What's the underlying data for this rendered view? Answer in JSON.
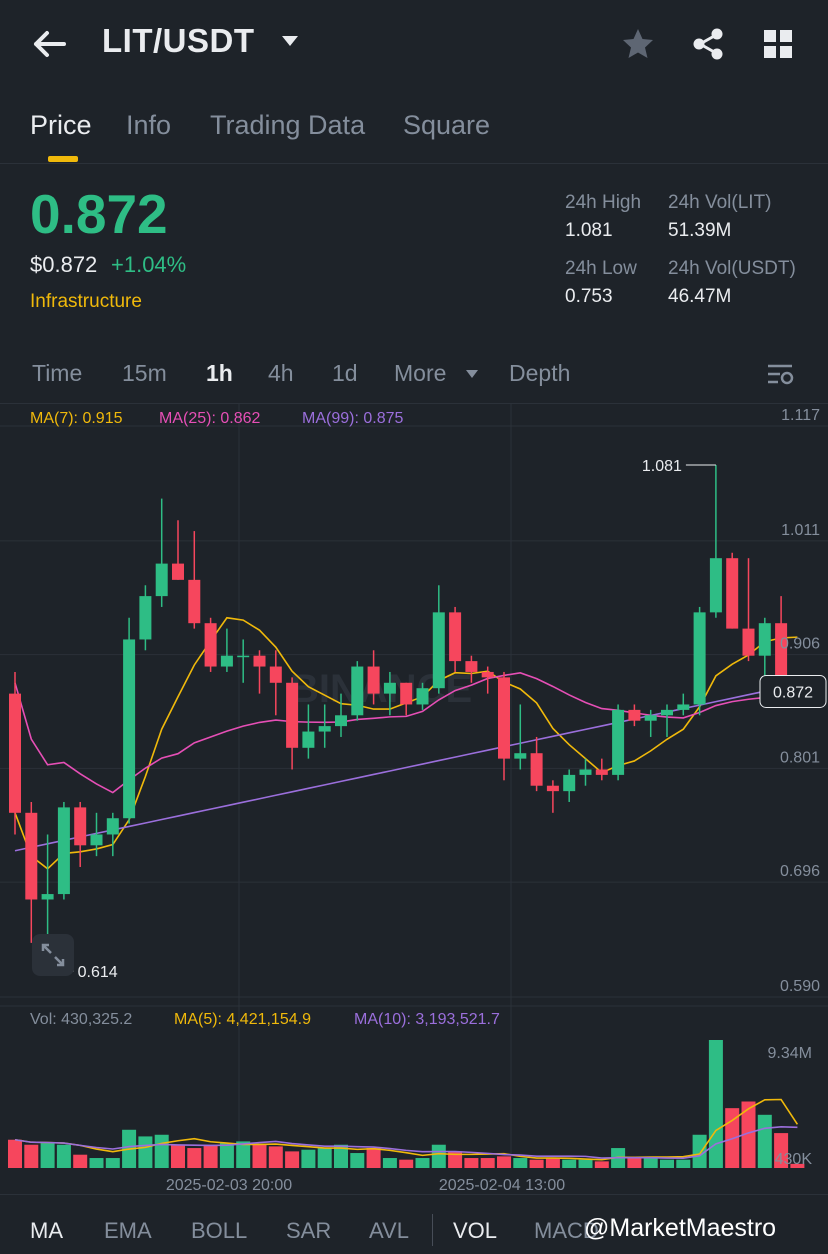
{
  "header": {
    "pair": "LIT/USDT",
    "back_icon": "arrow-left-icon",
    "icons": [
      "star-icon",
      "share-icon",
      "grid-icon"
    ]
  },
  "tabs": [
    {
      "label": "Price",
      "active": true
    },
    {
      "label": "Info",
      "active": false
    },
    {
      "label": "Trading Data",
      "active": false
    },
    {
      "label": "Square",
      "active": false
    }
  ],
  "ticker": {
    "last_price": "0.872",
    "usd_price": "$0.872",
    "change": "+1.04%",
    "category": "Infrastructure",
    "high_label": "24h High",
    "high": "1.081",
    "low_label": "24h Low",
    "low": "0.753",
    "vol_base_label": "24h Vol(LIT)",
    "vol_base": "51.39M",
    "vol_quote_label": "24h Vol(USDT)",
    "vol_quote": "46.47M"
  },
  "intervals": {
    "items": [
      "Time",
      "15m",
      "1h",
      "4h",
      "1d",
      "More",
      "Depth"
    ],
    "active": "1h"
  },
  "chart_legend": {
    "ma7": "MA(7): 0.915",
    "ma25": "MA(25): 0.862",
    "ma99": "MA(99): 0.875",
    "vol": "Vol: 430,325.2",
    "vol_ma5": "MA(5): 4,421,154.9",
    "vol_ma10": "MA(10): 3,193,521.7"
  },
  "chart_data": {
    "type": "candlestick",
    "price_axis_labels": [
      "1.117",
      "1.011",
      "0.906",
      "0.801",
      "0.696",
      "0.590"
    ],
    "price_axis": [
      1.117,
      1.011,
      0.906,
      0.801,
      0.696,
      0.59
    ],
    "volume_axis_labels": [
      "9.34M",
      "430K"
    ],
    "x_labels": [
      "2025-02-03 20:00",
      "2025-02-04 13:00"
    ],
    "current_price_label": "0.872",
    "high_marker": "1.081",
    "low_marker": "0.614",
    "watermark": "BINANCE",
    "colors": {
      "up": "#2ebd85",
      "down": "#f6465d",
      "ma7": "#f0b90b",
      "ma25": "#e64fb6",
      "ma99": "#9b6fdc"
    },
    "candles": [
      {
        "o": 0.87,
        "h": 0.89,
        "l": 0.74,
        "c": 0.76
      },
      {
        "o": 0.76,
        "h": 0.77,
        "l": 0.64,
        "c": 0.68
      },
      {
        "o": 0.68,
        "h": 0.74,
        "l": 0.614,
        "c": 0.685
      },
      {
        "o": 0.685,
        "h": 0.77,
        "l": 0.68,
        "c": 0.765
      },
      {
        "o": 0.765,
        "h": 0.77,
        "l": 0.71,
        "c": 0.73
      },
      {
        "o": 0.73,
        "h": 0.76,
        "l": 0.72,
        "c": 0.74
      },
      {
        "o": 0.74,
        "h": 0.76,
        "l": 0.72,
        "c": 0.755
      },
      {
        "o": 0.755,
        "h": 0.94,
        "l": 0.75,
        "c": 0.92
      },
      {
        "o": 0.92,
        "h": 0.97,
        "l": 0.91,
        "c": 0.96
      },
      {
        "o": 0.96,
        "h": 1.05,
        "l": 0.95,
        "c": 0.99
      },
      {
        "o": 0.99,
        "h": 1.03,
        "l": 0.975,
        "c": 0.975
      },
      {
        "o": 0.975,
        "h": 1.02,
        "l": 0.93,
        "c": 0.935
      },
      {
        "o": 0.935,
        "h": 0.94,
        "l": 0.89,
        "c": 0.895
      },
      {
        "o": 0.895,
        "h": 0.93,
        "l": 0.89,
        "c": 0.905
      },
      {
        "o": 0.905,
        "h": 0.92,
        "l": 0.88,
        "c": 0.905
      },
      {
        "o": 0.905,
        "h": 0.91,
        "l": 0.87,
        "c": 0.895
      },
      {
        "o": 0.895,
        "h": 0.91,
        "l": 0.85,
        "c": 0.88
      },
      {
        "o": 0.88,
        "h": 0.885,
        "l": 0.8,
        "c": 0.82
      },
      {
        "o": 0.82,
        "h": 0.86,
        "l": 0.81,
        "c": 0.835
      },
      {
        "o": 0.835,
        "h": 0.86,
        "l": 0.82,
        "c": 0.84
      },
      {
        "o": 0.84,
        "h": 0.87,
        "l": 0.83,
        "c": 0.85
      },
      {
        "o": 0.85,
        "h": 0.9,
        "l": 0.845,
        "c": 0.895
      },
      {
        "o": 0.895,
        "h": 0.91,
        "l": 0.86,
        "c": 0.87
      },
      {
        "o": 0.87,
        "h": 0.89,
        "l": 0.85,
        "c": 0.88
      },
      {
        "o": 0.88,
        "h": 0.88,
        "l": 0.85,
        "c": 0.86
      },
      {
        "o": 0.86,
        "h": 0.88,
        "l": 0.855,
        "c": 0.875
      },
      {
        "o": 0.875,
        "h": 0.97,
        "l": 0.87,
        "c": 0.945
      },
      {
        "o": 0.945,
        "h": 0.95,
        "l": 0.89,
        "c": 0.9
      },
      {
        "o": 0.9,
        "h": 0.905,
        "l": 0.88,
        "c": 0.89
      },
      {
        "o": 0.89,
        "h": 0.895,
        "l": 0.87,
        "c": 0.885
      },
      {
        "o": 0.885,
        "h": 0.89,
        "l": 0.79,
        "c": 0.81
      },
      {
        "o": 0.81,
        "h": 0.86,
        "l": 0.8,
        "c": 0.815
      },
      {
        "o": 0.815,
        "h": 0.83,
        "l": 0.78,
        "c": 0.785
      },
      {
        "o": 0.785,
        "h": 0.79,
        "l": 0.76,
        "c": 0.78
      },
      {
        "o": 0.78,
        "h": 0.8,
        "l": 0.77,
        "c": 0.795
      },
      {
        "o": 0.795,
        "h": 0.81,
        "l": 0.785,
        "c": 0.8
      },
      {
        "o": 0.8,
        "h": 0.81,
        "l": 0.79,
        "c": 0.795
      },
      {
        "o": 0.795,
        "h": 0.86,
        "l": 0.79,
        "c": 0.855
      },
      {
        "o": 0.855,
        "h": 0.86,
        "l": 0.84,
        "c": 0.845
      },
      {
        "o": 0.845,
        "h": 0.855,
        "l": 0.83,
        "c": 0.85
      },
      {
        "o": 0.85,
        "h": 0.86,
        "l": 0.83,
        "c": 0.855
      },
      {
        "o": 0.855,
        "h": 0.87,
        "l": 0.85,
        "c": 0.86
      },
      {
        "o": 0.86,
        "h": 0.95,
        "l": 0.85,
        "c": 0.945
      },
      {
        "o": 0.945,
        "h": 1.081,
        "l": 0.94,
        "c": 0.995
      },
      {
        "o": 0.995,
        "h": 1.0,
        "l": 0.93,
        "c": 0.93
      },
      {
        "o": 0.93,
        "h": 0.995,
        "l": 0.9,
        "c": 0.905
      },
      {
        "o": 0.905,
        "h": 0.94,
        "l": 0.88,
        "c": 0.935
      },
      {
        "o": 0.935,
        "h": 0.96,
        "l": 0.87,
        "c": 0.88
      },
      {
        "o": 0.88,
        "h": 0.885,
        "l": 0.86,
        "c": 0.865
      }
    ],
    "volumes": [
      1.7,
      1.4,
      1.5,
      1.4,
      0.8,
      0.6,
      0.6,
      2.3,
      1.9,
      2.0,
      1.4,
      1.2,
      1.4,
      1.5,
      1.6,
      1.4,
      1.3,
      1.0,
      1.1,
      1.2,
      1.4,
      0.9,
      1.2,
      0.6,
      0.5,
      0.6,
      1.4,
      1.0,
      0.6,
      0.6,
      0.7,
      0.6,
      0.5,
      0.6,
      0.5,
      0.5,
      0.4,
      1.2,
      0.6,
      0.6,
      0.5,
      0.5,
      2.0,
      7.7,
      3.6,
      4.0,
      3.2,
      2.1,
      0.25
    ]
  },
  "indicators": {
    "items": [
      "MA",
      "EMA",
      "BOLL",
      "SAR",
      "AVL",
      "VOL",
      "MACD"
    ],
    "active": [
      "MA",
      "VOL"
    ]
  },
  "watermark_text": "@MarketMaestro"
}
